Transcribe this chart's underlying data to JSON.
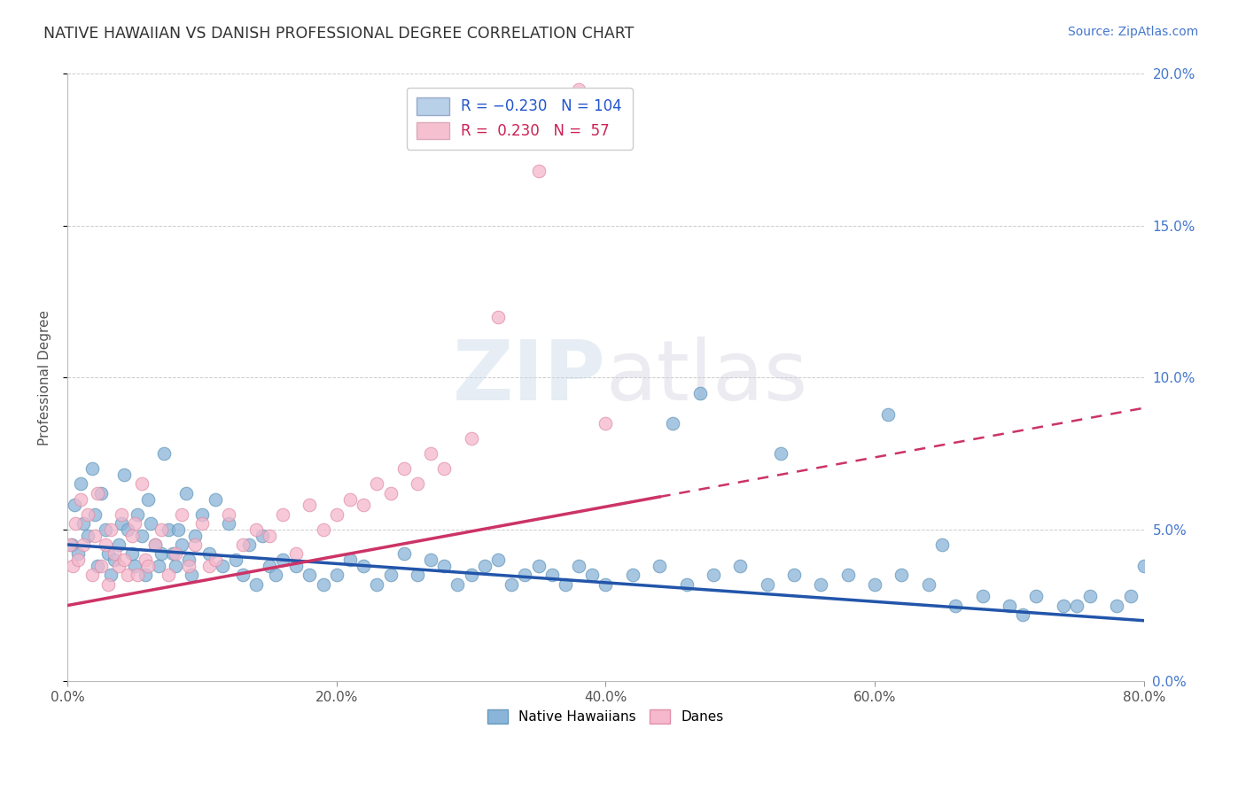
{
  "title": "NATIVE HAWAIIAN VS DANISH PROFESSIONAL DEGREE CORRELATION CHART",
  "source_text": "Source: ZipAtlas.com",
  "ylabel": "Professional Degree",
  "xlim": [
    0.0,
    80.0
  ],
  "ylim": [
    0.0,
    20.0
  ],
  "yticks": [
    0.0,
    5.0,
    10.0,
    15.0,
    20.0
  ],
  "xticks": [
    0.0,
    20.0,
    40.0,
    60.0,
    80.0
  ],
  "blue_scatter_color": "#8ab4d8",
  "blue_scatter_edge": "#6699bb",
  "pink_scatter_color": "#f5b8cc",
  "pink_scatter_edge": "#e090a8",
  "blue_line_color": "#2255aa",
  "pink_line_color": "#cc3366",
  "grid_color": "#cccccc",
  "background_color": "#ffffff",
  "blue_line_x0": 0.0,
  "blue_line_y0": 4.5,
  "blue_line_x1": 80.0,
  "blue_line_y1": 2.0,
  "pink_line_x0": 0.0,
  "pink_line_y0": 2.5,
  "pink_line_x1": 80.0,
  "pink_line_y1": 9.0,
  "pink_solid_end_x": 44.0,
  "native_hawaiian_x": [
    0.3,
    0.5,
    0.8,
    1.0,
    1.2,
    1.5,
    1.8,
    2.0,
    2.2,
    2.5,
    2.8,
    3.0,
    3.2,
    3.5,
    3.8,
    4.0,
    4.2,
    4.5,
    4.8,
    5.0,
    5.2,
    5.5,
    5.8,
    6.0,
    6.2,
    6.5,
    6.8,
    7.0,
    7.2,
    7.5,
    7.8,
    8.0,
    8.2,
    8.5,
    8.8,
    9.0,
    9.2,
    9.5,
    10.0,
    10.5,
    11.0,
    11.5,
    12.0,
    12.5,
    13.0,
    13.5,
    14.0,
    14.5,
    15.0,
    15.5,
    16.0,
    17.0,
    18.0,
    19.0,
    20.0,
    21.0,
    22.0,
    23.0,
    24.0,
    25.0,
    26.0,
    27.0,
    28.0,
    29.0,
    30.0,
    31.0,
    32.0,
    33.0,
    34.0,
    35.0,
    36.0,
    37.0,
    38.0,
    39.0,
    40.0,
    42.0,
    44.0,
    46.0,
    48.0,
    50.0,
    52.0,
    54.0,
    56.0,
    58.0,
    60.0,
    62.0,
    64.0,
    66.0,
    68.0,
    70.0,
    72.0,
    74.0,
    76.0,
    78.0,
    79.0,
    80.0,
    45.0,
    47.0,
    53.0,
    61.0,
    65.0,
    71.0,
    75.0
  ],
  "native_hawaiian_y": [
    4.5,
    5.8,
    4.2,
    6.5,
    5.2,
    4.8,
    7.0,
    5.5,
    3.8,
    6.2,
    5.0,
    4.2,
    3.5,
    4.0,
    4.5,
    5.2,
    6.8,
    5.0,
    4.2,
    3.8,
    5.5,
    4.8,
    3.5,
    6.0,
    5.2,
    4.5,
    3.8,
    4.2,
    7.5,
    5.0,
    4.2,
    3.8,
    5.0,
    4.5,
    6.2,
    4.0,
    3.5,
    4.8,
    5.5,
    4.2,
    6.0,
    3.8,
    5.2,
    4.0,
    3.5,
    4.5,
    3.2,
    4.8,
    3.8,
    3.5,
    4.0,
    3.8,
    3.5,
    3.2,
    3.5,
    4.0,
    3.8,
    3.2,
    3.5,
    4.2,
    3.5,
    4.0,
    3.8,
    3.2,
    3.5,
    3.8,
    4.0,
    3.2,
    3.5,
    3.8,
    3.5,
    3.2,
    3.8,
    3.5,
    3.2,
    3.5,
    3.8,
    3.2,
    3.5,
    3.8,
    3.2,
    3.5,
    3.2,
    3.5,
    3.2,
    3.5,
    3.2,
    2.5,
    2.8,
    2.5,
    2.8,
    2.5,
    2.8,
    2.5,
    2.8,
    3.8,
    8.5,
    9.5,
    7.5,
    8.8,
    4.5,
    2.2,
    2.5
  ],
  "danes_x": [
    0.2,
    0.4,
    0.6,
    0.8,
    1.0,
    1.2,
    1.5,
    1.8,
    2.0,
    2.2,
    2.5,
    2.8,
    3.0,
    3.2,
    3.5,
    3.8,
    4.0,
    4.2,
    4.5,
    4.8,
    5.0,
    5.2,
    5.5,
    5.8,
    6.0,
    6.5,
    7.0,
    7.5,
    8.0,
    8.5,
    9.0,
    9.5,
    10.0,
    10.5,
    11.0,
    12.0,
    13.0,
    14.0,
    15.0,
    16.0,
    17.0,
    18.0,
    19.0,
    20.0,
    21.0,
    22.0,
    23.0,
    24.0,
    25.0,
    26.0,
    27.0,
    28.0,
    30.0,
    32.0,
    35.0,
    38.0,
    40.0
  ],
  "danes_y": [
    4.5,
    3.8,
    5.2,
    4.0,
    6.0,
    4.5,
    5.5,
    3.5,
    4.8,
    6.2,
    3.8,
    4.5,
    3.2,
    5.0,
    4.2,
    3.8,
    5.5,
    4.0,
    3.5,
    4.8,
    5.2,
    3.5,
    6.5,
    4.0,
    3.8,
    4.5,
    5.0,
    3.5,
    4.2,
    5.5,
    3.8,
    4.5,
    5.2,
    3.8,
    4.0,
    5.5,
    4.5,
    5.0,
    4.8,
    5.5,
    4.2,
    5.8,
    5.0,
    5.5,
    6.0,
    5.8,
    6.5,
    6.2,
    7.0,
    6.5,
    7.5,
    7.0,
    8.0,
    12.0,
    16.8,
    19.5,
    8.5
  ]
}
